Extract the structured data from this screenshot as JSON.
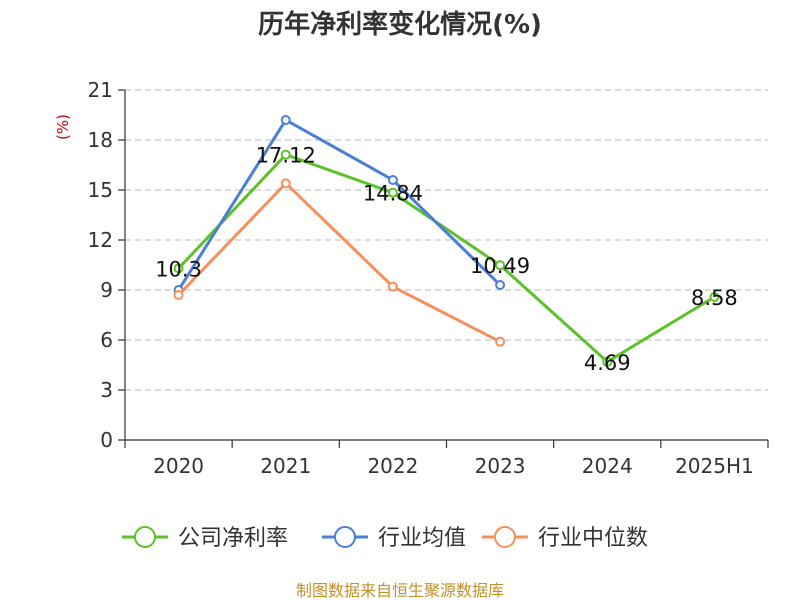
{
  "chart_data": {
    "type": "line",
    "title": "历年净利率变化情况(%)",
    "ylabel": "(%)",
    "xlabel": "",
    "categories": [
      "2020",
      "2021",
      "2022",
      "2023",
      "2024",
      "2025H1"
    ],
    "ylim": [
      0,
      21
    ],
    "yticks": [
      0,
      3,
      6,
      9,
      12,
      15,
      18,
      21
    ],
    "grid": true,
    "legend_position": "bottom",
    "series": [
      {
        "name": "公司净利率",
        "color": "#5dc129",
        "values": [
          10.3,
          17.12,
          14.84,
          10.49,
          4.69,
          8.58
        ],
        "labels": [
          "10.3",
          "17.12",
          "14.84",
          "10.49",
          "4.69",
          "8.58"
        ]
      },
      {
        "name": "行业均值",
        "color": "#4a7fd8",
        "values": [
          9.0,
          19.2,
          15.6,
          9.3,
          null,
          null
        ]
      },
      {
        "name": "行业中位数",
        "color": "#f68f5c",
        "values": [
          8.7,
          15.4,
          9.2,
          5.9,
          null,
          null
        ]
      }
    ]
  },
  "source": "制图数据来自恒生聚源数据库"
}
